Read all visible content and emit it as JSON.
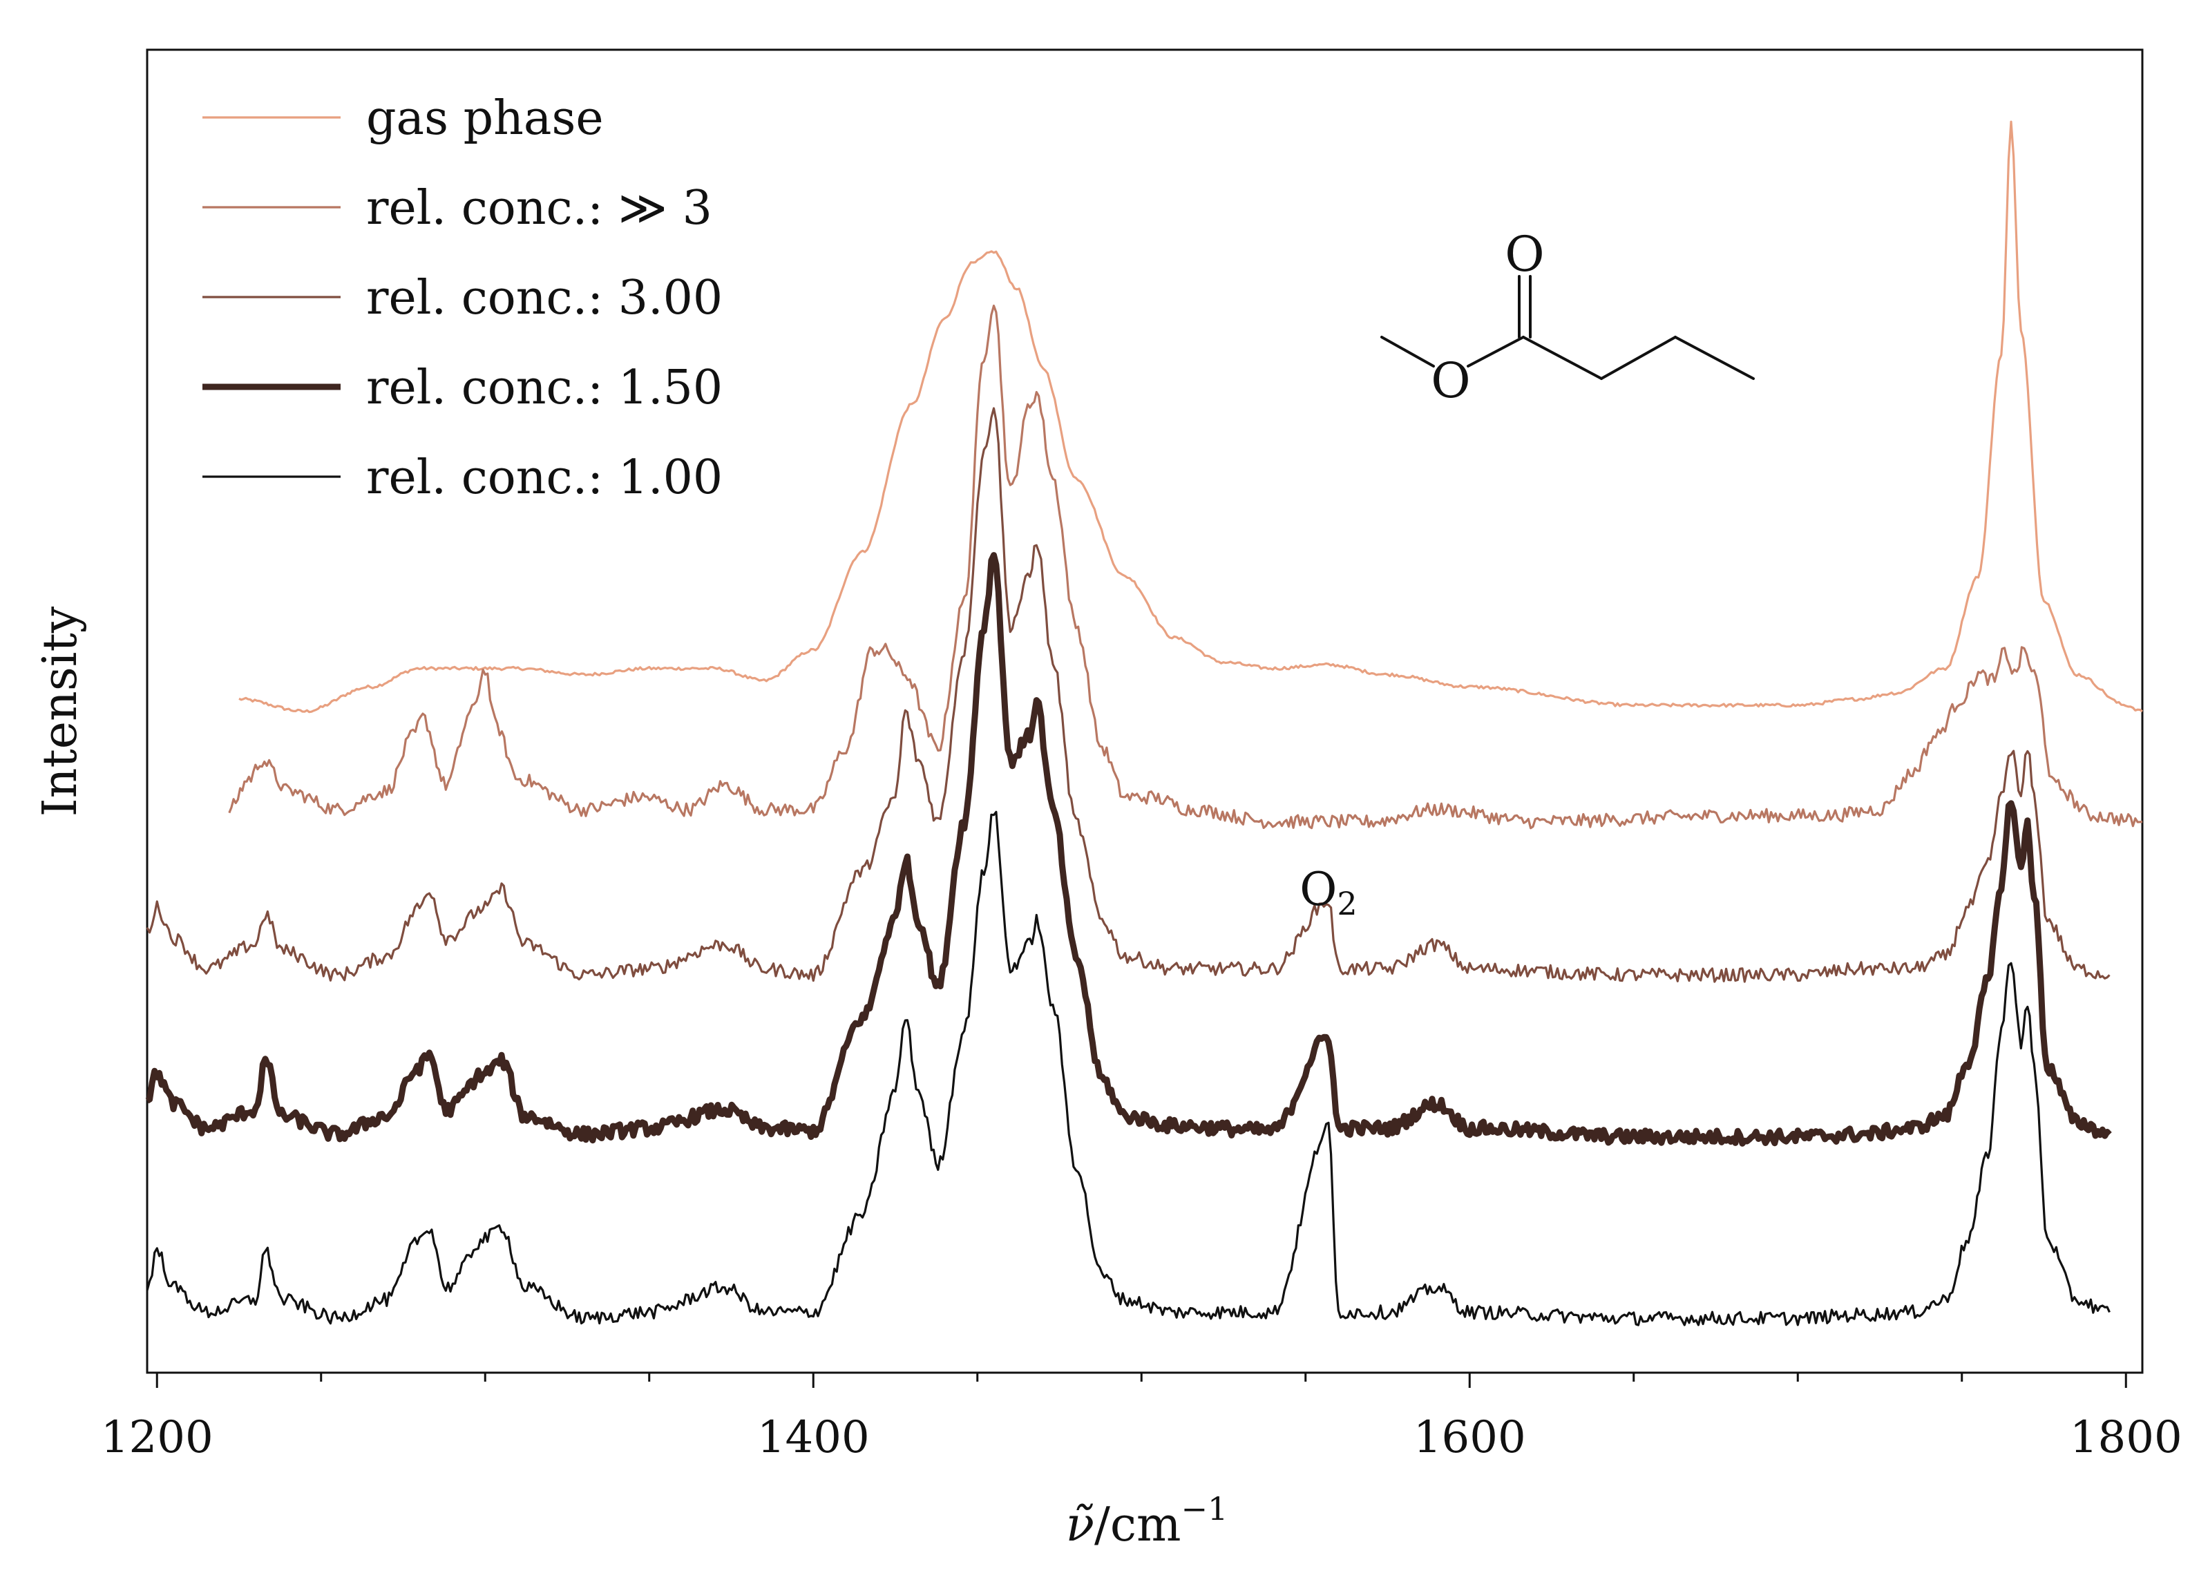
{
  "chart_data": {
    "type": "line",
    "title": "",
    "xlabel": "ν̃ / cm⁻¹",
    "xlabel_parts": {
      "symbol": "ν̃",
      "unit": "/cm",
      "exponent": "−1"
    },
    "ylabel": "Intensity",
    "xlim": [
      1197,
      1805
    ],
    "xticks": [
      1200,
      1400,
      1600,
      1800
    ],
    "xtick_labels": [
      "1200",
      "1400",
      "1600",
      "1800"
    ],
    "minor_xticks": [
      1250,
      1300,
      1350,
      1450,
      1500,
      1550,
      1650,
      1700,
      1750
    ],
    "yaxis_ticks": false,
    "grid": false,
    "legend_position": "top-left",
    "y_units": "arbitrary intensity (stacked, offset traces)",
    "annotations": [
      {
        "text": "O",
        "subscript": "2",
        "x": 1557
      }
    ],
    "molecule": {
      "depicted": "methyl butanoate skeletal structure",
      "atom_labels": [
        "O",
        "O"
      ]
    },
    "series": [
      {
        "name": "gas phase",
        "color": "#E8A080",
        "linewidth": "thin",
        "x": [
          1225,
          1245,
          1265,
          1280,
          1295,
          1310,
          1330,
          1350,
          1370,
          1385,
          1400,
          1415,
          1430,
          1440,
          1448,
          1455,
          1462,
          1470,
          1480,
          1495,
          1510,
          1525,
          1540,
          1557,
          1575,
          1600,
          1650,
          1700,
          1718,
          1730,
          1745,
          1755,
          1762,
          1765,
          1768,
          1775,
          1785,
          1800,
          1805
        ],
        "y": [
          0.52,
          0.51,
          0.53,
          0.545,
          0.545,
          0.545,
          0.54,
          0.545,
          0.545,
          0.535,
          0.56,
          0.64,
          0.76,
          0.83,
          0.875,
          0.885,
          0.855,
          0.79,
          0.7,
          0.62,
          0.57,
          0.55,
          0.545,
          0.548,
          0.54,
          0.53,
          0.515,
          0.515,
          0.52,
          0.525,
          0.545,
          0.62,
          0.8,
          0.99,
          0.82,
          0.6,
          0.54,
          0.515,
          0.51
        ]
      },
      {
        "name": "rel. conc.: ≫ 3",
        "color": "#B87762",
        "linewidth": "thin",
        "x": [
          1222,
          1228,
          1232,
          1240,
          1255,
          1270,
          1278,
          1281,
          1288,
          1296,
          1300,
          1303,
          1310,
          1330,
          1348,
          1362,
          1373,
          1385,
          1400,
          1410,
          1418,
          1422,
          1428,
          1438,
          1446,
          1452,
          1455,
          1460,
          1466,
          1468,
          1473,
          1480,
          1488,
          1495,
          1503,
          1515,
          1540,
          1570,
          1590,
          1620,
          1680,
          1710,
          1725,
          1735,
          1742,
          1750,
          1755,
          1760,
          1763,
          1766,
          1769,
          1772,
          1778,
          1790,
          1805
        ],
        "y": [
          0.43,
          0.455,
          0.47,
          0.445,
          0.43,
          0.445,
          0.49,
          0.505,
          0.45,
          0.51,
          0.545,
          0.5,
          0.455,
          0.43,
          0.44,
          0.43,
          0.45,
          0.43,
          0.43,
          0.48,
          0.56,
          0.56,
          0.54,
          0.48,
          0.6,
          0.8,
          0.845,
          0.69,
          0.76,
          0.77,
          0.7,
          0.58,
          0.48,
          0.44,
          0.44,
          0.43,
          0.42,
          0.42,
          0.43,
          0.42,
          0.425,
          0.425,
          0.43,
          0.46,
          0.49,
          0.52,
          0.54,
          0.535,
          0.56,
          0.54,
          0.56,
          0.54,
          0.45,
          0.425,
          0.42
        ]
      },
      {
        "name": "rel. conc.: 3.00",
        "color": "#7F4D3F",
        "linewidth": "thin",
        "x": [
          1197,
          1200,
          1205,
          1215,
          1230,
          1233,
          1238,
          1255,
          1270,
          1280,
          1283,
          1288,
          1300,
          1305,
          1312,
          1330,
          1350,
          1373,
          1385,
          1400,
          1415,
          1425,
          1428,
          1432,
          1438,
          1446,
          1452,
          1455,
          1460,
          1466,
          1468,
          1473,
          1480,
          1488,
          1495,
          1510,
          1540,
          1557,
          1560,
          1575,
          1590,
          1600,
          1650,
          1700,
          1720,
          1735,
          1745,
          1752,
          1758,
          1762,
          1765,
          1768,
          1770,
          1772,
          1776,
          1785,
          1795
        ],
        "y": [
          0.33,
          0.35,
          0.325,
          0.3,
          0.32,
          0.345,
          0.315,
          0.295,
          0.31,
          0.35,
          0.365,
          0.325,
          0.35,
          0.365,
          0.32,
          0.295,
          0.3,
          0.32,
          0.3,
          0.295,
          0.38,
          0.44,
          0.51,
          0.47,
          0.42,
          0.56,
          0.72,
          0.76,
          0.58,
          0.62,
          0.65,
          0.55,
          0.42,
          0.34,
          0.31,
          0.3,
          0.3,
          0.355,
          0.3,
          0.3,
          0.32,
          0.3,
          0.295,
          0.295,
          0.3,
          0.3,
          0.31,
          0.35,
          0.385,
          0.44,
          0.48,
          0.44,
          0.48,
          0.44,
          0.34,
          0.3,
          0.295
        ]
      },
      {
        "name": "rel. conc.: 1.50",
        "color": "#3F2620",
        "linewidth": "thick",
        "x": [
          1197,
          1200,
          1205,
          1215,
          1230,
          1233,
          1238,
          1255,
          1270,
          1280,
          1283,
          1288,
          1300,
          1305,
          1312,
          1330,
          1350,
          1373,
          1385,
          1400,
          1415,
          1425,
          1428,
          1432,
          1438,
          1446,
          1452,
          1455,
          1460,
          1466,
          1468,
          1473,
          1480,
          1488,
          1495,
          1510,
          1540,
          1557,
          1560,
          1575,
          1590,
          1600,
          1650,
          1700,
          1720,
          1735,
          1745,
          1752,
          1758,
          1762,
          1765,
          1768,
          1770,
          1772,
          1776,
          1785,
          1795
        ],
        "y": [
          0.195,
          0.215,
          0.19,
          0.17,
          0.185,
          0.225,
          0.18,
          0.165,
          0.18,
          0.22,
          0.23,
          0.185,
          0.215,
          0.225,
          0.18,
          0.165,
          0.17,
          0.185,
          0.17,
          0.168,
          0.26,
          0.34,
          0.39,
          0.34,
          0.285,
          0.42,
          0.58,
          0.64,
          0.47,
          0.49,
          0.52,
          0.43,
          0.31,
          0.21,
          0.18,
          0.172,
          0.168,
          0.245,
          0.17,
          0.17,
          0.19,
          0.17,
          0.163,
          0.163,
          0.165,
          0.17,
          0.18,
          0.225,
          0.29,
          0.37,
          0.44,
          0.38,
          0.42,
          0.36,
          0.22,
          0.175,
          0.165
        ]
      },
      {
        "name": "rel. conc.: 1.00",
        "color": "#111111",
        "linewidth": "thin",
        "x": [
          1197,
          1200,
          1205,
          1215,
          1230,
          1233,
          1238,
          1255,
          1270,
          1280,
          1283,
          1288,
          1300,
          1305,
          1312,
          1330,
          1350,
          1373,
          1385,
          1400,
          1415,
          1425,
          1428,
          1432,
          1438,
          1446,
          1452,
          1455,
          1460,
          1466,
          1468,
          1473,
          1480,
          1488,
          1495,
          1510,
          1540,
          1557,
          1560,
          1575,
          1590,
          1600,
          1650,
          1700,
          1720,
          1735,
          1745,
          1752,
          1758,
          1762,
          1765,
          1768,
          1770,
          1772,
          1776,
          1785,
          1795
        ],
        "y": [
          0.04,
          0.07,
          0.04,
          0.02,
          0.03,
          0.07,
          0.03,
          0.015,
          0.03,
          0.08,
          0.09,
          0.04,
          0.08,
          0.09,
          0.04,
          0.015,
          0.02,
          0.04,
          0.02,
          0.02,
          0.1,
          0.2,
          0.26,
          0.2,
          0.14,
          0.25,
          0.38,
          0.43,
          0.3,
          0.32,
          0.34,
          0.27,
          0.14,
          0.05,
          0.03,
          0.02,
          0.02,
          0.17,
          0.02,
          0.02,
          0.04,
          0.02,
          0.015,
          0.015,
          0.018,
          0.02,
          0.03,
          0.08,
          0.15,
          0.25,
          0.31,
          0.24,
          0.27,
          0.22,
          0.08,
          0.03,
          0.02
        ]
      }
    ]
  }
}
